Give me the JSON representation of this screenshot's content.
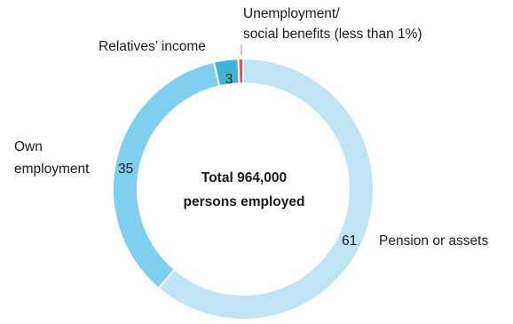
{
  "chart_data": {
    "type": "pie",
    "donut": true,
    "center_text": [
      "Total 964,000",
      "persons employed"
    ],
    "slices": [
      {
        "label_lines": [
          "Pension or assets"
        ],
        "value": 61,
        "value_label": "61",
        "color": "#bfe5f4"
      },
      {
        "label_lines": [
          "Own",
          "employment"
        ],
        "value": 35,
        "value_label": "35",
        "color": "#7ed0ee"
      },
      {
        "label_lines": [
          "Relatives’ income"
        ],
        "value": 3,
        "value_label": "3",
        "color": "#3ab5d3"
      },
      {
        "label_lines": [
          "Unemployment/",
          "social benefits (less than 1%)"
        ],
        "value": 0.6,
        "value_label": "",
        "color": "#e8505b"
      }
    ]
  }
}
